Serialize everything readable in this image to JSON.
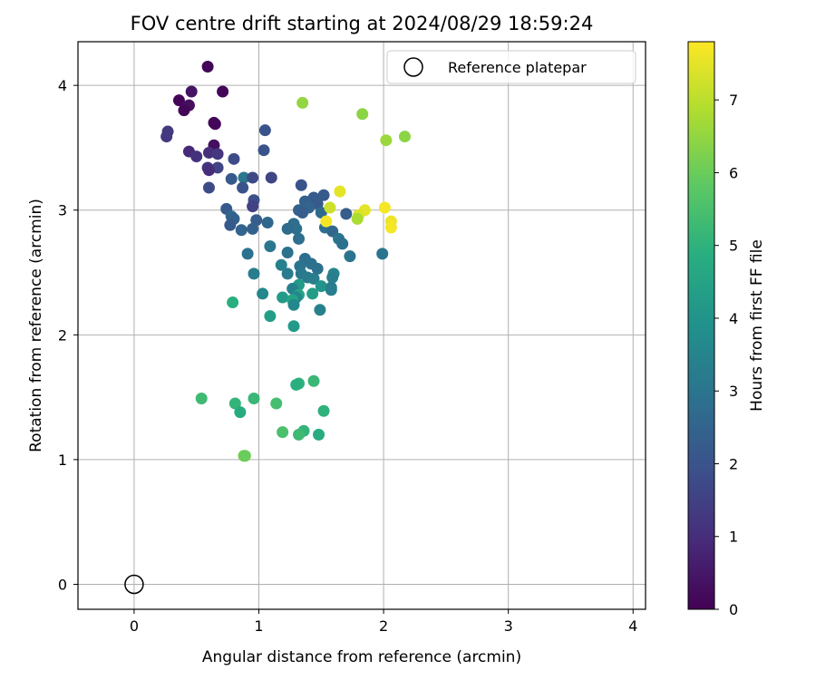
{
  "chart_data": {
    "type": "scatter",
    "title": "FOV centre drift starting at 2024/08/29 18:59:24",
    "xlabel": "Angular distance from reference (arcmin)",
    "ylabel": "Rotation from reference (arcmin)",
    "xlim": [
      -0.45,
      4.1
    ],
    "ylim": [
      -0.2,
      4.35
    ],
    "xticks": [
      "0",
      "1",
      "2",
      "3",
      "4"
    ],
    "yticks": [
      "0",
      "1",
      "2",
      "3",
      "4"
    ],
    "grid": true,
    "colormap": "viridis",
    "colorbar": {
      "label": "Hours from first FF file",
      "range": [
        0,
        7.8
      ],
      "ticks": [
        "0",
        "1",
        "2",
        "3",
        "4",
        "5",
        "6",
        "7"
      ]
    },
    "reference_point": {
      "x": 0,
      "y": 0,
      "legend_label": "Reference platepar"
    },
    "legend_position": "top-right",
    "points": [
      {
        "x": 0.59,
        "y": 4.15,
        "c": 0.1
      },
      {
        "x": 0.46,
        "y": 3.95,
        "c": 0.4
      },
      {
        "x": 0.71,
        "y": 3.95,
        "c": 0.1
      },
      {
        "x": 0.36,
        "y": 3.88,
        "c": 0.1
      },
      {
        "x": 0.44,
        "y": 3.84,
        "c": 0.3
      },
      {
        "x": 0.4,
        "y": 3.8,
        "c": 0.1
      },
      {
        "x": 0.64,
        "y": 3.7,
        "c": 0.1
      },
      {
        "x": 0.65,
        "y": 3.69,
        "c": 0.1
      },
      {
        "x": 0.27,
        "y": 3.63,
        "c": 1.3
      },
      {
        "x": 0.26,
        "y": 3.59,
        "c": 1.3
      },
      {
        "x": 0.64,
        "y": 3.52,
        "c": 0.3
      },
      {
        "x": 0.44,
        "y": 3.47,
        "c": 0.9
      },
      {
        "x": 0.6,
        "y": 3.46,
        "c": 1.0
      },
      {
        "x": 0.67,
        "y": 3.45,
        "c": 1.2
      },
      {
        "x": 0.5,
        "y": 3.43,
        "c": 1.1
      },
      {
        "x": 0.8,
        "y": 3.41,
        "c": 1.8
      },
      {
        "x": 0.59,
        "y": 3.34,
        "c": 1.2
      },
      {
        "x": 0.67,
        "y": 3.34,
        "c": 1.6
      },
      {
        "x": 0.6,
        "y": 3.32,
        "c": 1.0
      },
      {
        "x": 0.88,
        "y": 3.26,
        "c": 3.1
      },
      {
        "x": 0.95,
        "y": 3.26,
        "c": 1.7
      },
      {
        "x": 1.1,
        "y": 3.26,
        "c": 1.6
      },
      {
        "x": 0.78,
        "y": 3.25,
        "c": 2.2
      },
      {
        "x": 0.6,
        "y": 3.18,
        "c": 1.8
      },
      {
        "x": 0.87,
        "y": 3.18,
        "c": 2.0
      },
      {
        "x": 1.05,
        "y": 3.64,
        "c": 2.0
      },
      {
        "x": 1.04,
        "y": 3.48,
        "c": 2.0
      },
      {
        "x": 0.96,
        "y": 3.08,
        "c": 1.9
      },
      {
        "x": 0.95,
        "y": 3.03,
        "c": 1.5
      },
      {
        "x": 0.74,
        "y": 3.01,
        "c": 2.2
      },
      {
        "x": 0.78,
        "y": 2.95,
        "c": 2.6
      },
      {
        "x": 0.8,
        "y": 2.93,
        "c": 2.4
      },
      {
        "x": 0.98,
        "y": 2.92,
        "c": 2.3
      },
      {
        "x": 1.07,
        "y": 2.9,
        "c": 2.6
      },
      {
        "x": 0.77,
        "y": 2.88,
        "c": 2.2
      },
      {
        "x": 0.95,
        "y": 2.85,
        "c": 2.4
      },
      {
        "x": 0.86,
        "y": 2.84,
        "c": 2.5
      },
      {
        "x": 0.91,
        "y": 2.65,
        "c": 2.9
      },
      {
        "x": 0.96,
        "y": 2.49,
        "c": 3.3
      },
      {
        "x": 1.34,
        "y": 3.2,
        "c": 2.0
      },
      {
        "x": 1.44,
        "y": 3.1,
        "c": 2.2
      },
      {
        "x": 1.52,
        "y": 3.12,
        "c": 2.2
      },
      {
        "x": 1.37,
        "y": 3.07,
        "c": 2.4
      },
      {
        "x": 1.47,
        "y": 3.05,
        "c": 2.2
      },
      {
        "x": 1.4,
        "y": 3.02,
        "c": 2.5
      },
      {
        "x": 1.32,
        "y": 3.0,
        "c": 2.4
      },
      {
        "x": 1.5,
        "y": 2.98,
        "c": 2.7
      },
      {
        "x": 1.35,
        "y": 2.98,
        "c": 2.3
      },
      {
        "x": 1.7,
        "y": 2.97,
        "c": 2.3
      },
      {
        "x": 1.28,
        "y": 2.89,
        "c": 2.8
      },
      {
        "x": 1.3,
        "y": 2.85,
        "c": 2.8
      },
      {
        "x": 1.23,
        "y": 2.85,
        "c": 2.7
      },
      {
        "x": 1.53,
        "y": 2.86,
        "c": 2.8
      },
      {
        "x": 1.59,
        "y": 2.83,
        "c": 2.6
      },
      {
        "x": 1.64,
        "y": 2.77,
        "c": 3.0
      },
      {
        "x": 1.32,
        "y": 2.77,
        "c": 2.8
      },
      {
        "x": 1.67,
        "y": 2.73,
        "c": 2.9
      },
      {
        "x": 1.09,
        "y": 2.71,
        "c": 3.1
      },
      {
        "x": 1.23,
        "y": 2.66,
        "c": 2.9
      },
      {
        "x": 1.99,
        "y": 2.65,
        "c": 3.0
      },
      {
        "x": 1.73,
        "y": 2.63,
        "c": 3.0
      },
      {
        "x": 1.37,
        "y": 2.61,
        "c": 2.8
      },
      {
        "x": 1.42,
        "y": 2.57,
        "c": 2.9
      },
      {
        "x": 1.18,
        "y": 2.56,
        "c": 3.4
      },
      {
        "x": 1.33,
        "y": 2.55,
        "c": 3.0
      },
      {
        "x": 1.47,
        "y": 2.53,
        "c": 2.9
      },
      {
        "x": 1.23,
        "y": 2.49,
        "c": 3.2
      },
      {
        "x": 1.34,
        "y": 2.49,
        "c": 3.1
      },
      {
        "x": 1.6,
        "y": 2.49,
        "c": 3.5
      },
      {
        "x": 1.39,
        "y": 2.46,
        "c": 3.2
      },
      {
        "x": 1.59,
        "y": 2.46,
        "c": 3.3
      },
      {
        "x": 1.44,
        "y": 2.45,
        "c": 3.3
      },
      {
        "x": 1.32,
        "y": 2.4,
        "c": 4.2
      },
      {
        "x": 1.5,
        "y": 2.39,
        "c": 4.0
      },
      {
        "x": 1.58,
        "y": 2.38,
        "c": 3.3
      },
      {
        "x": 1.27,
        "y": 2.37,
        "c": 3.4
      },
      {
        "x": 1.58,
        "y": 2.36,
        "c": 3.3
      },
      {
        "x": 1.43,
        "y": 2.33,
        "c": 4.3
      },
      {
        "x": 1.03,
        "y": 2.33,
        "c": 3.6
      },
      {
        "x": 1.32,
        "y": 2.32,
        "c": 4.5
      },
      {
        "x": 1.19,
        "y": 2.3,
        "c": 4.2
      },
      {
        "x": 1.3,
        "y": 2.3,
        "c": 3.6
      },
      {
        "x": 1.27,
        "y": 2.28,
        "c": 4.5
      },
      {
        "x": 1.28,
        "y": 2.24,
        "c": 3.6
      },
      {
        "x": 0.79,
        "y": 2.26,
        "c": 4.9
      },
      {
        "x": 1.49,
        "y": 2.2,
        "c": 3.4
      },
      {
        "x": 1.09,
        "y": 2.15,
        "c": 4.3
      },
      {
        "x": 1.28,
        "y": 2.07,
        "c": 4.2
      },
      {
        "x": 1.35,
        "y": 3.86,
        "c": 6.5
      },
      {
        "x": 1.83,
        "y": 3.77,
        "c": 6.4
      },
      {
        "x": 2.17,
        "y": 3.59,
        "c": 6.4
      },
      {
        "x": 2.02,
        "y": 3.56,
        "c": 6.6
      },
      {
        "x": 1.65,
        "y": 3.15,
        "c": 7.5
      },
      {
        "x": 1.57,
        "y": 3.02,
        "c": 7.2
      },
      {
        "x": 1.85,
        "y": 3.0,
        "c": 7.5
      },
      {
        "x": 2.01,
        "y": 3.02,
        "c": 7.7
      },
      {
        "x": 1.8,
        "y": 2.96,
        "c": 7.4
      },
      {
        "x": 1.79,
        "y": 2.93,
        "c": 6.8
      },
      {
        "x": 2.06,
        "y": 2.91,
        "c": 7.6
      },
      {
        "x": 1.54,
        "y": 2.91,
        "c": 7.7
      },
      {
        "x": 2.06,
        "y": 2.86,
        "c": 7.7
      },
      {
        "x": 1.44,
        "y": 1.63,
        "c": 5.2
      },
      {
        "x": 1.32,
        "y": 1.61,
        "c": 5.0
      },
      {
        "x": 1.3,
        "y": 1.6,
        "c": 4.9
      },
      {
        "x": 0.54,
        "y": 1.49,
        "c": 5.3
      },
      {
        "x": 0.96,
        "y": 1.49,
        "c": 5.2
      },
      {
        "x": 0.81,
        "y": 1.45,
        "c": 5.1
      },
      {
        "x": 1.14,
        "y": 1.45,
        "c": 5.4
      },
      {
        "x": 0.85,
        "y": 1.38,
        "c": 4.8
      },
      {
        "x": 1.52,
        "y": 1.39,
        "c": 5.0
      },
      {
        "x": 1.19,
        "y": 1.22,
        "c": 5.5
      },
      {
        "x": 1.36,
        "y": 1.23,
        "c": 5.1
      },
      {
        "x": 1.32,
        "y": 1.2,
        "c": 5.3
      },
      {
        "x": 1.48,
        "y": 1.2,
        "c": 4.8
      },
      {
        "x": 0.88,
        "y": 1.03,
        "c": 6.1
      },
      {
        "x": 0.89,
        "y": 1.03,
        "c": 6.0
      }
    ]
  }
}
